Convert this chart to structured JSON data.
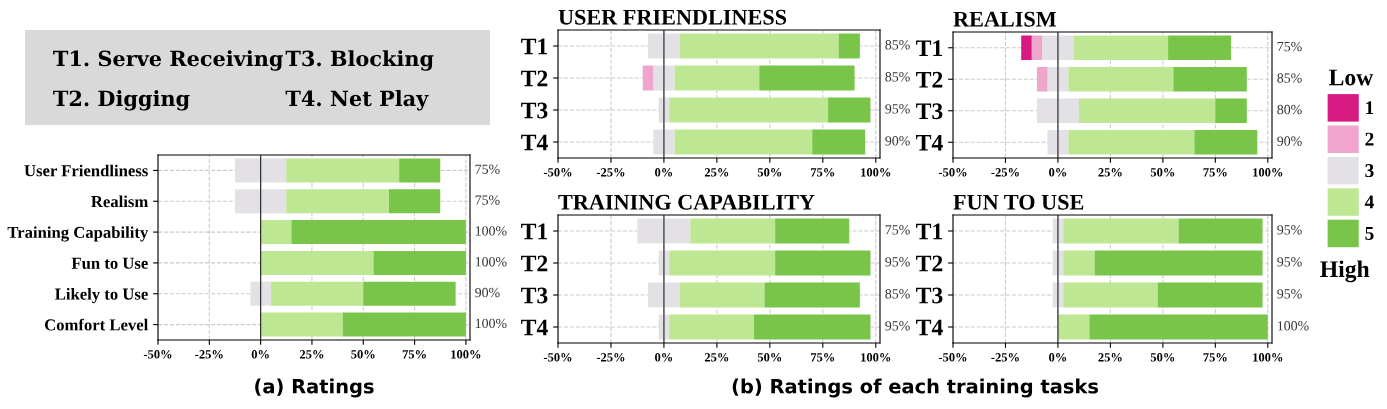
{
  "chart_data": [
    {
      "type": "other",
      "color": "#d9d9d9",
      "annotations": [
        "T1. Serve Receiving",
        "T2. Digging",
        "T3. Blocking",
        "T4. Net Play"
      ]
    },
    {
      "type": "bar",
      "orientation": "horizontal",
      "stacked": true,
      "categories": [
        "User Friendliness",
        "Realism",
        "Training Capability",
        "Fun to Use",
        "Likely to Use",
        "Comfort Level"
      ],
      "series": [
        {
          "color": "#e3e1e5",
          "values": [
            -12.5,
            -12.5,
            null,
            null,
            -5,
            null
          ]
        },
        {
          "color": "#e3e1e5",
          "values": [
            12.5,
            12.5,
            null,
            null,
            5,
            null
          ]
        },
        {
          "color": "#bde792",
          "values": [
            55,
            50,
            15,
            55,
            45,
            40
          ]
        },
        {
          "color": "#78c54a",
          "values": [
            20,
            25,
            85,
            45,
            45,
            60
          ]
        }
      ],
      "xlim": [
        -50,
        102
      ],
      "xticks": [
        {
          "value": -50,
          "label": "-50%"
        },
        {
          "value": -25,
          "label": "-25%"
        },
        {
          "value": 0,
          "label": "0%"
        },
        {
          "value": 25,
          "label": "25%"
        },
        {
          "value": 50,
          "label": "50%"
        },
        {
          "value": 75,
          "label": "75%"
        },
        {
          "value": 100,
          "label": "100%"
        }
      ],
      "grid": true,
      "ref_lines": [
        {
          "axis": "x",
          "value": 0,
          "color": "#333333"
        }
      ],
      "annotations": [
        "75%",
        "75%",
        "100%",
        "100%",
        "90%",
        "100%",
        "(a) Ratings"
      ]
    },
    {
      "type": "bar",
      "orientation": "horizontal",
      "stacked": true,
      "title": "USER FRIENDLINESS",
      "categories": [
        "T1",
        "T2",
        "T3",
        "T4"
      ],
      "series": [
        {
          "color": "#e3e1e5",
          "values": [
            -7.5,
            -5,
            -2.5,
            -5
          ]
        },
        {
          "color": "#f0a5cc",
          "values": [
            null,
            -5,
            null,
            null
          ]
        },
        {
          "color": "#e3e1e5",
          "values": [
            7.5,
            5,
            2.5,
            5
          ]
        },
        {
          "color": "#bde792",
          "values": [
            75,
            40,
            75,
            65
          ]
        },
        {
          "color": "#78c54a",
          "values": [
            10,
            45,
            20,
            25
          ]
        }
      ],
      "xlim": [
        -50,
        102
      ],
      "xticks": [
        {
          "value": -50,
          "label": "-50%"
        },
        {
          "value": -25,
          "label": "-25%"
        },
        {
          "value": 0,
          "label": "0%"
        },
        {
          "value": 25,
          "label": "25%"
        },
        {
          "value": 50,
          "label": "50%"
        },
        {
          "value": 75,
          "label": "75%"
        },
        {
          "value": 100,
          "label": "100%"
        }
      ],
      "grid": true,
      "ref_lines": [
        {
          "axis": "x",
          "value": 0,
          "color": "#333333"
        }
      ],
      "annotations": [
        "85%",
        "85%",
        "95%",
        "90%",
        "(b) Ratings of each training tasks"
      ]
    },
    {
      "type": "bar",
      "orientation": "horizontal",
      "stacked": true,
      "title": "REALISM",
      "categories": [
        "T1",
        "T2",
        "T3",
        "T4"
      ],
      "series": [
        {
          "color": "#e3e1e5",
          "values": [
            -7.5,
            -5,
            -10,
            -5
          ]
        },
        {
          "name": "2",
          "color": "#f0a5cc",
          "values": [
            -5,
            -5,
            null,
            null
          ]
        },
        {
          "name": "1",
          "color": "#d61a82",
          "values": [
            -5,
            null,
            null,
            null
          ]
        },
        {
          "name": "3",
          "color": "#e3e1e5",
          "values": [
            7.5,
            5,
            10,
            5
          ]
        },
        {
          "name": "4",
          "color": "#bde792",
          "values": [
            45,
            50,
            65,
            60
          ]
        },
        {
          "name": "5",
          "color": "#78c54a",
          "values": [
            30,
            35,
            15,
            30
          ]
        }
      ],
      "xlim": [
        -50,
        102
      ],
      "xticks": [
        {
          "value": -50,
          "label": "-50%"
        },
        {
          "value": -25,
          "label": "-25%"
        },
        {
          "value": 0,
          "label": "0%"
        },
        {
          "value": 25,
          "label": "25%"
        },
        {
          "value": 50,
          "label": "50%"
        },
        {
          "value": 75,
          "label": "75%"
        },
        {
          "value": 100,
          "label": "100%"
        }
      ],
      "grid": true,
      "ref_lines": [
        {
          "axis": "x",
          "value": 0,
          "color": "#333333"
        }
      ],
      "legend": "right",
      "legend_title": "Low",
      "annotations": [
        "75%",
        "85%",
        "80%",
        "90%",
        "High"
      ]
    },
    {
      "type": "bar",
      "orientation": "horizontal",
      "stacked": true,
      "title": "TRAINING CAPABILITY",
      "categories": [
        "T1",
        "T2",
        "T3",
        "T4"
      ],
      "series": [
        {
          "color": "#e3e1e5",
          "values": [
            -12.5,
            -2.5,
            -7.5,
            -2.5
          ]
        },
        {
          "color": "#e3e1e5",
          "values": [
            12.5,
            2.5,
            7.5,
            2.5
          ]
        },
        {
          "color": "#bde792",
          "values": [
            40,
            50,
            40,
            40
          ]
        },
        {
          "color": "#78c54a",
          "values": [
            35,
            45,
            45,
            55
          ]
        }
      ],
      "xlim": [
        -50,
        102
      ],
      "xticks": [
        {
          "value": -50,
          "label": "-50%"
        },
        {
          "value": -25,
          "label": "-25%"
        },
        {
          "value": 0,
          "label": "0%"
        },
        {
          "value": 25,
          "label": "25%"
        },
        {
          "value": 50,
          "label": "50%"
        },
        {
          "value": 75,
          "label": "75%"
        },
        {
          "value": 100,
          "label": "100%"
        }
      ],
      "grid": true,
      "ref_lines": [
        {
          "axis": "x",
          "value": 0,
          "color": "#333333"
        }
      ],
      "annotations": [
        "75%",
        "95%",
        "85%",
        "95%"
      ]
    },
    {
      "type": "bar",
      "orientation": "horizontal",
      "stacked": true,
      "title": "FUN TO USE",
      "categories": [
        "T1",
        "T2",
        "T3",
        "T4"
      ],
      "series": [
        {
          "color": "#e3e1e5",
          "values": [
            -2.5,
            -2.5,
            -2.5,
            null
          ]
        },
        {
          "color": "#e3e1e5",
          "values": [
            2.5,
            2.5,
            2.5,
            null
          ]
        },
        {
          "color": "#bde792",
          "values": [
            55,
            15,
            45,
            15
          ]
        },
        {
          "color": "#78c54a",
          "values": [
            40,
            80,
            50,
            85
          ]
        }
      ],
      "xlim": [
        -50,
        102
      ],
      "xticks": [
        {
          "value": -50,
          "label": "-50%"
        },
        {
          "value": -25,
          "label": "-25%"
        },
        {
          "value": 0,
          "label": "0%"
        },
        {
          "value": 25,
          "label": "25%"
        },
        {
          "value": 50,
          "label": "50%"
        },
        {
          "value": 75,
          "label": "75%"
        },
        {
          "value": 100,
          "label": "100%"
        }
      ],
      "grid": true,
      "ref_lines": [
        {
          "axis": "x",
          "value": 0,
          "color": "#333333"
        }
      ],
      "annotations": [
        "95%",
        "95%",
        "95%",
        "100%"
      ]
    }
  ]
}
